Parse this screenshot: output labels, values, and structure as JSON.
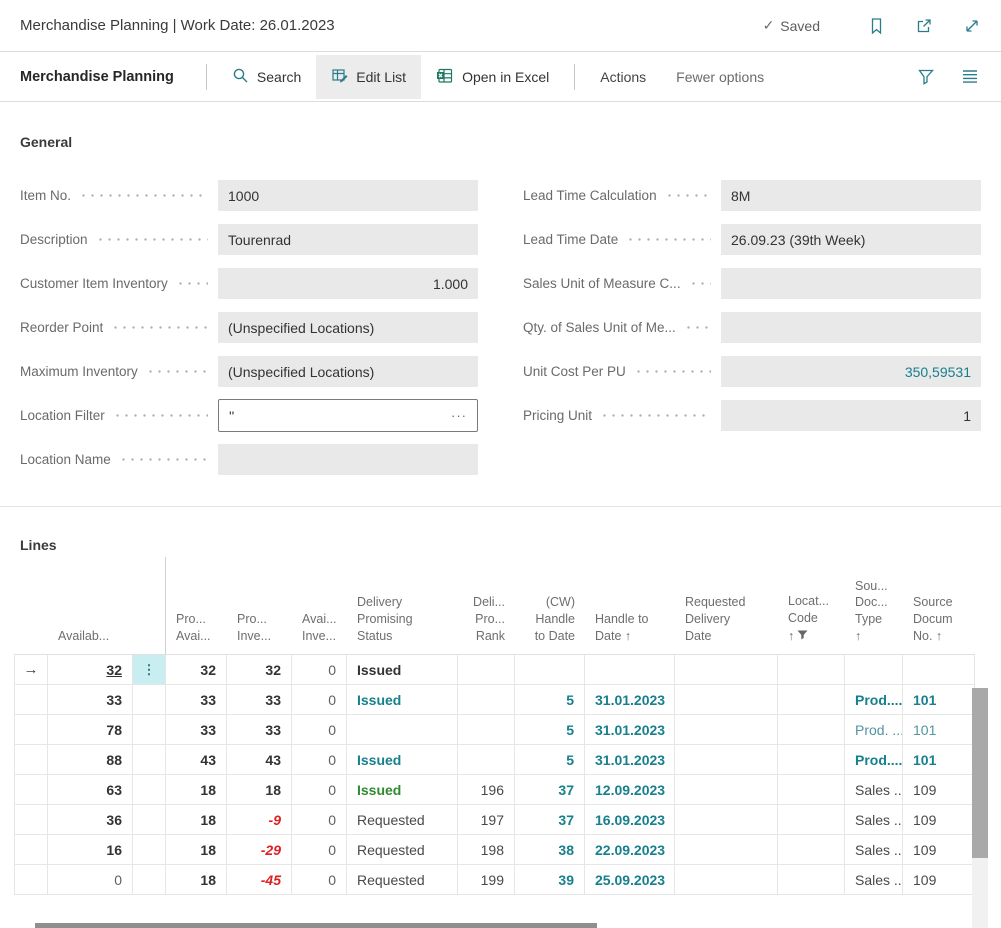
{
  "titlebar": {
    "title": "Merchandise Planning | Work Date: 26.01.2023",
    "saved_check": "✓",
    "saved_label": "Saved",
    "icons": [
      "bookmark-icon",
      "popout-icon",
      "expand-icon"
    ]
  },
  "toolbar": {
    "caption": "Merchandise Planning",
    "search_label": "Search",
    "edit_list_label": "Edit List",
    "open_excel_label": "Open in Excel",
    "actions_label": "Actions",
    "fewer_options_label": "Fewer options",
    "icons": [
      "search-icon",
      "edit-list-icon",
      "excel-icon",
      "filter-icon",
      "list-icon"
    ]
  },
  "general": {
    "heading": "General",
    "left_fields": [
      {
        "label": "Item No.",
        "value": "1000"
      },
      {
        "label": "Description",
        "value": "Tourenrad"
      },
      {
        "label": "Customer Item Inventory",
        "value": "1.000"
      },
      {
        "label": "Reorder Point",
        "value": "(Unspecified Locations)"
      },
      {
        "label": "Maximum Inventory",
        "value": "(Unspecified Locations)"
      },
      {
        "label": "Location Filter",
        "value": "''",
        "assist": "···"
      },
      {
        "label": "Location Name",
        "value": ""
      }
    ],
    "right_fields": [
      {
        "label": "Lead Time Calculation",
        "value": "8M"
      },
      {
        "label": "Lead Time Date",
        "value": "26.09.23 (39th Week)"
      },
      {
        "label": "Sales Unit of Measure C...",
        "value": ""
      },
      {
        "label": "Qty. of Sales Unit of Me...",
        "value": ""
      },
      {
        "label": "Unit Cost Per PU",
        "value": "350,59531"
      },
      {
        "label": "Pricing Unit",
        "value": "1"
      }
    ]
  },
  "lines": {
    "heading": "Lines",
    "columns": [
      {
        "key": "selector",
        "label": ""
      },
      {
        "key": "available",
        "label": "Availab..."
      },
      {
        "key": "row-menu",
        "label": ""
      },
      {
        "key": "projected-available",
        "label": "Pro...\nAvai..."
      },
      {
        "key": "projected-inventory",
        "label": "Pro...\nInve..."
      },
      {
        "key": "available-inventory",
        "label": "Avai...\nInve..."
      },
      {
        "key": "delivery-promising-status",
        "label": "Delivery\nPromising\nStatus"
      },
      {
        "key": "delivery-promising-rank",
        "label": "Deli...\nPro...\nRank"
      },
      {
        "key": "cw-handle-to-date",
        "label": "(CW)\nHandle\nto Date"
      },
      {
        "key": "handle-to-date",
        "label": "Handle to\nDate ↑"
      },
      {
        "key": "requested-delivery-date",
        "label": "Requested\nDelivery\nDate"
      },
      {
        "key": "location-code",
        "label": "Locat...\nCode",
        "sort": "↑",
        "filtered": true
      },
      {
        "key": "source-doc-type",
        "label": "Sou...\nDoc...\nType\n↑"
      },
      {
        "key": "source-doc-no",
        "label": "Source\nDocum\nNo. ↑"
      }
    ],
    "rows": [
      [
        [
          "→",
          "arrow"
        ],
        [
          "32",
          "bold u"
        ],
        [
          "⋮",
          "menu"
        ],
        [
          "32",
          "bold"
        ],
        [
          "32",
          "bold"
        ],
        [
          "0",
          "zero"
        ],
        [
          "Issued",
          "dark-bold"
        ],
        [
          "",
          ""
        ],
        [
          "",
          ""
        ],
        [
          "",
          ""
        ],
        [
          "",
          ""
        ],
        [
          "",
          ""
        ],
        [
          "",
          ""
        ],
        [
          "",
          ""
        ]
      ],
      [
        [
          "",
          ""
        ],
        [
          "33",
          "bold"
        ],
        [
          "",
          ""
        ],
        [
          "33",
          "bold"
        ],
        [
          "33",
          "bold"
        ],
        [
          "0",
          "zero"
        ],
        [
          "Issued",
          "teal-bold"
        ],
        [
          "",
          ""
        ],
        [
          "5",
          "teal-bold"
        ],
        [
          "31.01.2023",
          "teal-bold"
        ],
        [
          "",
          ""
        ],
        [
          "",
          ""
        ],
        [
          "Prod....",
          "teal-bold"
        ],
        [
          "101",
          "teal-bold"
        ]
      ],
      [
        [
          "",
          ""
        ],
        [
          "78",
          "bold"
        ],
        [
          "",
          ""
        ],
        [
          "33",
          "bold"
        ],
        [
          "33",
          "bold"
        ],
        [
          "0",
          "zero"
        ],
        [
          "",
          ""
        ],
        [
          "",
          ""
        ],
        [
          "5",
          "teal-bold"
        ],
        [
          "31.01.2023",
          "teal-bold"
        ],
        [
          "",
          ""
        ],
        [
          "",
          ""
        ],
        [
          "Prod. ...",
          "teal"
        ],
        [
          "101",
          "teal"
        ]
      ],
      [
        [
          "",
          ""
        ],
        [
          "88",
          "bold"
        ],
        [
          "",
          ""
        ],
        [
          "43",
          "bold"
        ],
        [
          "43",
          "bold"
        ],
        [
          "0",
          "zero"
        ],
        [
          "Issued",
          "teal-bold"
        ],
        [
          "",
          ""
        ],
        [
          "5",
          "teal-bold"
        ],
        [
          "31.01.2023",
          "teal-bold"
        ],
        [
          "",
          ""
        ],
        [
          "",
          ""
        ],
        [
          "Prod....",
          "teal-bold"
        ],
        [
          "101",
          "teal-bold"
        ]
      ],
      [
        [
          "",
          ""
        ],
        [
          "63",
          "bold"
        ],
        [
          "",
          ""
        ],
        [
          "18",
          "bold"
        ],
        [
          "18",
          "bold"
        ],
        [
          "0",
          "zero"
        ],
        [
          "Issued",
          "green-bold"
        ],
        [
          "196",
          "num"
        ],
        [
          "37",
          "teal-bold"
        ],
        [
          "12.09.2023",
          "teal-bold"
        ],
        [
          "",
          ""
        ],
        [
          "",
          ""
        ],
        [
          "Sales ...",
          "text"
        ],
        [
          "109",
          "text"
        ]
      ],
      [
        [
          "",
          ""
        ],
        [
          "36",
          "bold"
        ],
        [
          "",
          ""
        ],
        [
          "18",
          "bold"
        ],
        [
          "-9",
          "neg"
        ],
        [
          "0",
          "zero"
        ],
        [
          "Requested",
          "text"
        ],
        [
          "197",
          "num"
        ],
        [
          "37",
          "teal-bold"
        ],
        [
          "16.09.2023",
          "teal-bold"
        ],
        [
          "",
          ""
        ],
        [
          "",
          ""
        ],
        [
          "Sales ...",
          "text"
        ],
        [
          "109",
          "text"
        ]
      ],
      [
        [
          "",
          ""
        ],
        [
          "16",
          "bold"
        ],
        [
          "",
          ""
        ],
        [
          "18",
          "bold"
        ],
        [
          "-29",
          "neg"
        ],
        [
          "0",
          "zero"
        ],
        [
          "Requested",
          "text"
        ],
        [
          "198",
          "num"
        ],
        [
          "38",
          "teal-bold"
        ],
        [
          "22.09.2023",
          "teal-bold"
        ],
        [
          "",
          ""
        ],
        [
          "",
          ""
        ],
        [
          "Sales ...",
          "text"
        ],
        [
          "109",
          "text"
        ]
      ],
      [
        [
          "",
          ""
        ],
        [
          "0",
          "zero"
        ],
        [
          "",
          ""
        ],
        [
          "18",
          "bold"
        ],
        [
          "-45",
          "neg"
        ],
        [
          "0",
          "zero"
        ],
        [
          "Requested",
          "text"
        ],
        [
          "199",
          "num"
        ],
        [
          "39",
          "teal-bold"
        ],
        [
          "25.09.2023",
          "teal-bold"
        ],
        [
          "",
          ""
        ],
        [
          "",
          ""
        ],
        [
          "Sales ...",
          "text"
        ],
        [
          "109",
          "text"
        ]
      ]
    ]
  },
  "colors": {
    "accent": "#2b7c8a",
    "link": "#17808d",
    "link-light": "#4f96a1",
    "neg": "#e02020",
    "green": "#2f8b2f",
    "sel": "#c9eef1",
    "fieldbg": "#e9e9e9"
  }
}
